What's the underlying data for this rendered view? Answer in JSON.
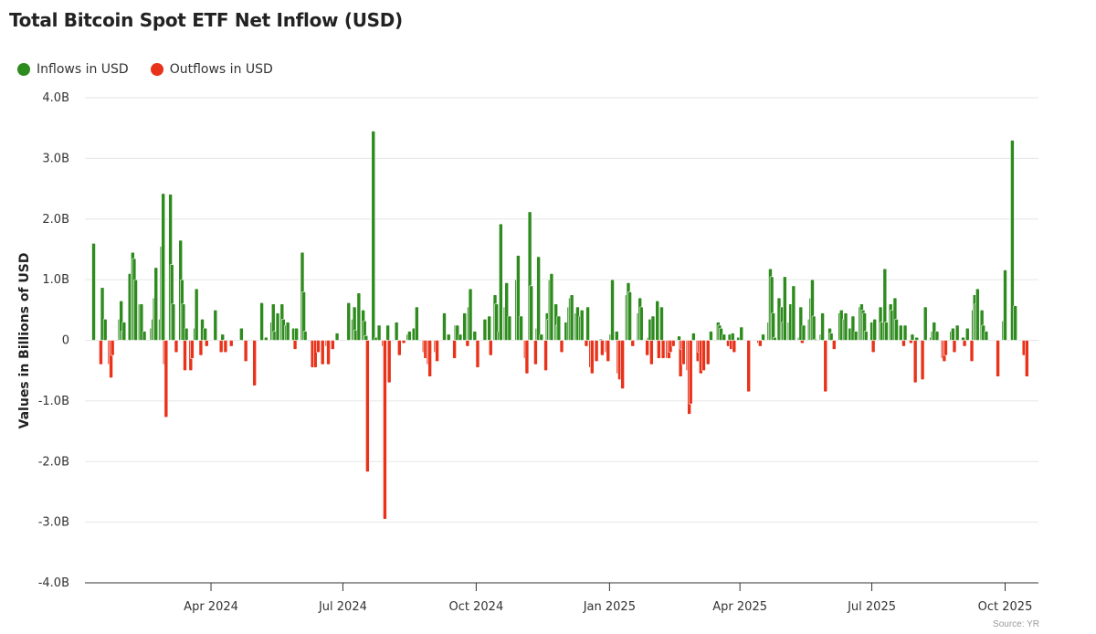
{
  "chart_data": {
    "type": "bar",
    "title": "Total Bitcoin Spot ETF Net Inflow (USD)",
    "ylabel": "Values in Billions of USD",
    "xlabel": "",
    "ylim": [
      -4.0,
      4.0
    ],
    "xlim": [
      "2024-01-05",
      "2025-10-24"
    ],
    "grid": true,
    "legend_placement": "top-left",
    "source": "Source: YR",
    "y_ticks": [
      {
        "value": 4,
        "label": "4.0B"
      },
      {
        "value": 3,
        "label": "3.0B"
      },
      {
        "value": 2,
        "label": "2.0B"
      },
      {
        "value": 1,
        "label": "1.0B"
      },
      {
        "value": 0,
        "label": "0"
      },
      {
        "value": -1,
        "label": "-1.0B"
      },
      {
        "value": -2,
        "label": "-2.0B"
      },
      {
        "value": -3,
        "label": "-3.0B"
      },
      {
        "value": -4,
        "label": "-4.0B"
      }
    ],
    "x_ticks": [
      {
        "date": "2024-04-01",
        "label": "Apr 2024"
      },
      {
        "date": "2024-07-01",
        "label": "Jul 2024"
      },
      {
        "date": "2024-10-01",
        "label": "Oct 2024"
      },
      {
        "date": "2025-01-01",
        "label": "Jan 2025"
      },
      {
        "date": "2025-04-01",
        "label": "Apr 2025"
      },
      {
        "date": "2025-07-01",
        "label": "Jul 2025"
      },
      {
        "date": "2025-10-01",
        "label": "Oct 2025"
      }
    ],
    "legend": [
      {
        "name": "Inflows in USD",
        "color": "#2e8b1e"
      },
      {
        "name": "Outflows in USD",
        "color": "#e8321a"
      }
    ],
    "colors": {
      "inflow": "#2e8b1e",
      "outflow": "#e8321a"
    },
    "values_unit": "billion USD",
    "points": [
      [
        "2024-01-11",
        1.6
      ],
      [
        "2024-01-16",
        -0.4
      ],
      [
        "2024-01-17",
        0.87
      ],
      [
        "2024-01-19",
        0.35
      ],
      [
        "2024-01-22",
        -0.4
      ],
      [
        "2024-01-23",
        -0.62
      ],
      [
        "2024-01-24",
        -0.25
      ],
      [
        "2024-01-29",
        0.35
      ],
      [
        "2024-01-30",
        0.65
      ],
      [
        "2024-01-31",
        0.15
      ],
      [
        "2024-02-01",
        0.3
      ],
      [
        "2024-02-05",
        1.1
      ],
      [
        "2024-02-07",
        1.45
      ],
      [
        "2024-02-08",
        1.35
      ],
      [
        "2024-02-09",
        1.0
      ],
      [
        "2024-02-12",
        0.6
      ],
      [
        "2024-02-13",
        0.6
      ],
      [
        "2024-02-15",
        0.15
      ],
      [
        "2024-02-20",
        0.2
      ],
      [
        "2024-02-21",
        0.35
      ],
      [
        "2024-02-22",
        0.7
      ],
      [
        "2024-02-23",
        1.2
      ],
      [
        "2024-02-26",
        0.35
      ],
      [
        "2024-02-27",
        1.55
      ],
      [
        "2024-02-28",
        2.42
      ],
      [
        "2024-02-29",
        -0.4
      ],
      [
        "2024-03-01",
        -1.27
      ],
      [
        "2024-03-04",
        2.41
      ],
      [
        "2024-03-05",
        1.25
      ],
      [
        "2024-03-06",
        0.6
      ],
      [
        "2024-03-08",
        -0.2
      ],
      [
        "2024-03-11",
        1.65
      ],
      [
        "2024-03-12",
        1.0
      ],
      [
        "2024-03-13",
        0.6
      ],
      [
        "2024-03-14",
        -0.5
      ],
      [
        "2024-03-15",
        0.2
      ],
      [
        "2024-03-18",
        -0.5
      ],
      [
        "2024-03-19",
        -0.3
      ],
      [
        "2024-03-21",
        0.2
      ],
      [
        "2024-03-22",
        0.85
      ],
      [
        "2024-03-25",
        -0.25
      ],
      [
        "2024-03-26",
        0.35
      ],
      [
        "2024-03-28",
        0.2
      ],
      [
        "2024-03-29",
        -0.1
      ],
      [
        "2024-04-04",
        0.5
      ],
      [
        "2024-04-08",
        -0.2
      ],
      [
        "2024-04-09",
        0.1
      ],
      [
        "2024-04-11",
        -0.2
      ],
      [
        "2024-04-15",
        -0.1
      ],
      [
        "2024-04-22",
        0.2
      ],
      [
        "2024-04-25",
        -0.35
      ],
      [
        "2024-05-01",
        -0.75
      ],
      [
        "2024-05-06",
        0.62
      ],
      [
        "2024-05-09",
        0.05
      ],
      [
        "2024-05-13",
        0.3
      ],
      [
        "2024-05-14",
        0.6
      ],
      [
        "2024-05-15",
        0.15
      ],
      [
        "2024-05-17",
        0.45
      ],
      [
        "2024-05-20",
        0.6
      ],
      [
        "2024-05-21",
        0.35
      ],
      [
        "2024-05-23",
        0.25
      ],
      [
        "2024-05-24",
        0.3
      ],
      [
        "2024-05-28",
        0.2
      ],
      [
        "2024-05-29",
        -0.15
      ],
      [
        "2024-05-30",
        0.2
      ],
      [
        "2024-06-03",
        1.45
      ],
      [
        "2024-06-04",
        0.8
      ],
      [
        "2024-06-05",
        0.15
      ],
      [
        "2024-06-10",
        -0.45
      ],
      [
        "2024-06-12",
        -0.45
      ],
      [
        "2024-06-14",
        -0.2
      ],
      [
        "2024-06-17",
        -0.4
      ],
      [
        "2024-06-20",
        -0.1
      ],
      [
        "2024-06-21",
        -0.4
      ],
      [
        "2024-06-24",
        -0.15
      ],
      [
        "2024-06-27",
        0.12
      ],
      [
        "2024-07-05",
        0.62
      ],
      [
        "2024-07-08",
        0.35
      ],
      [
        "2024-07-09",
        0.55
      ],
      [
        "2024-07-10",
        0.17
      ],
      [
        "2024-07-12",
        0.78
      ],
      [
        "2024-07-15",
        0.5
      ],
      [
        "2024-07-16",
        0.32
      ],
      [
        "2024-07-17",
        0.08
      ],
      [
        "2024-07-18",
        -2.17
      ],
      [
        "2024-07-22",
        3.45
      ],
      [
        "2024-07-24",
        0.05
      ],
      [
        "2024-07-26",
        0.25
      ],
      [
        "2024-07-29",
        -0.1
      ],
      [
        "2024-07-30",
        -2.95
      ],
      [
        "2024-08-01",
        0.25
      ],
      [
        "2024-08-02",
        -0.7
      ],
      [
        "2024-08-07",
        0.3
      ],
      [
        "2024-08-09",
        -0.25
      ],
      [
        "2024-08-12",
        -0.05
      ],
      [
        "2024-08-15",
        0.1
      ],
      [
        "2024-08-16",
        0.15
      ],
      [
        "2024-08-19",
        0.2
      ],
      [
        "2024-08-21",
        0.55
      ],
      [
        "2024-08-26",
        -0.2
      ],
      [
        "2024-08-27",
        -0.3
      ],
      [
        "2024-08-29",
        -0.4
      ],
      [
        "2024-08-30",
        -0.6
      ],
      [
        "2024-09-03",
        -0.2
      ],
      [
        "2024-09-04",
        -0.35
      ],
      [
        "2024-09-09",
        0.45
      ],
      [
        "2024-09-12",
        0.1
      ],
      [
        "2024-09-16",
        -0.3
      ],
      [
        "2024-09-17",
        0.25
      ],
      [
        "2024-09-18",
        0.25
      ],
      [
        "2024-09-20",
        0.1
      ],
      [
        "2024-09-23",
        0.45
      ],
      [
        "2024-09-25",
        -0.1
      ],
      [
        "2024-09-26",
        0.55
      ],
      [
        "2024-09-27",
        0.85
      ],
      [
        "2024-09-30",
        0.15
      ],
      [
        "2024-10-02",
        -0.45
      ],
      [
        "2024-10-07",
        0.35
      ],
      [
        "2024-10-10",
        0.4
      ],
      [
        "2024-10-11",
        -0.25
      ],
      [
        "2024-10-14",
        0.75
      ],
      [
        "2024-10-15",
        0.6
      ],
      [
        "2024-10-17",
        0.15
      ],
      [
        "2024-10-18",
        1.92
      ],
      [
        "2024-10-21",
        0.55
      ],
      [
        "2024-10-22",
        0.95
      ],
      [
        "2024-10-24",
        0.4
      ],
      [
        "2024-10-29",
        1.0
      ],
      [
        "2024-10-30",
        1.4
      ],
      [
        "2024-11-01",
        0.4
      ],
      [
        "2024-11-04",
        -0.3
      ],
      [
        "2024-11-05",
        -0.55
      ],
      [
        "2024-11-07",
        2.12
      ],
      [
        "2024-11-08",
        0.9
      ],
      [
        "2024-11-11",
        -0.4
      ],
      [
        "2024-11-12",
        0.2
      ],
      [
        "2024-11-13",
        1.38
      ],
      [
        "2024-11-15",
        0.1
      ],
      [
        "2024-11-18",
        -0.5
      ],
      [
        "2024-11-19",
        0.45
      ],
      [
        "2024-11-20",
        0.35
      ],
      [
        "2024-11-21",
        1.0
      ],
      [
        "2024-11-22",
        1.1
      ],
      [
        "2024-11-25",
        0.6
      ],
      [
        "2024-11-26",
        0.25
      ],
      [
        "2024-11-27",
        0.4
      ],
      [
        "2024-11-29",
        -0.2
      ],
      [
        "2024-12-02",
        0.3
      ],
      [
        "2024-12-04",
        0.55
      ],
      [
        "2024-12-05",
        0.7
      ],
      [
        "2024-12-06",
        0.75
      ],
      [
        "2024-12-09",
        0.45
      ],
      [
        "2024-12-10",
        0.55
      ],
      [
        "2024-12-12",
        0.4
      ],
      [
        "2024-12-13",
        0.5
      ],
      [
        "2024-12-16",
        -0.1
      ],
      [
        "2024-12-17",
        0.55
      ],
      [
        "2024-12-19",
        -0.45
      ],
      [
        "2024-12-20",
        -0.55
      ],
      [
        "2024-12-23",
        -0.35
      ],
      [
        "2024-12-26",
        0.02
      ],
      [
        "2024-12-27",
        -0.25
      ],
      [
        "2024-12-30",
        -0.2
      ],
      [
        "2024-12-31",
        -0.35
      ],
      [
        "2025-01-02",
        0.1
      ],
      [
        "2025-01-03",
        1.0
      ],
      [
        "2025-01-06",
        0.15
      ],
      [
        "2025-01-07",
        -0.55
      ],
      [
        "2025-01-08",
        -0.65
      ],
      [
        "2025-01-10",
        -0.8
      ],
      [
        "2025-01-13",
        0.75
      ],
      [
        "2025-01-14",
        0.95
      ],
      [
        "2025-01-15",
        0.8
      ],
      [
        "2025-01-17",
        -0.1
      ],
      [
        "2025-01-21",
        0.45
      ],
      [
        "2025-01-22",
        0.7
      ],
      [
        "2025-01-23",
        0.55
      ],
      [
        "2025-01-27",
        -0.25
      ],
      [
        "2025-01-28",
        0.05
      ],
      [
        "2025-01-29",
        0.35
      ],
      [
        "2025-01-30",
        -0.4
      ],
      [
        "2025-01-31",
        0.4
      ],
      [
        "2025-02-03",
        0.65
      ],
      [
        "2025-02-04",
        -0.3
      ],
      [
        "2025-02-06",
        0.55
      ],
      [
        "2025-02-07",
        -0.3
      ],
      [
        "2025-02-10",
        -0.3
      ],
      [
        "2025-02-11",
        -0.3
      ],
      [
        "2025-02-12",
        -0.2
      ],
      [
        "2025-02-14",
        -0.1
      ],
      [
        "2025-02-18",
        0.07
      ],
      [
        "2025-02-19",
        -0.6
      ],
      [
        "2025-02-20",
        -0.15
      ],
      [
        "2025-02-21",
        -0.4
      ],
      [
        "2025-02-24",
        -0.5
      ],
      [
        "2025-02-25",
        -1.22
      ],
      [
        "2025-02-26",
        -1.05
      ],
      [
        "2025-02-28",
        0.12
      ],
      [
        "2025-03-03",
        -0.35
      ],
      [
        "2025-03-04",
        -0.2
      ],
      [
        "2025-03-05",
        -0.55
      ],
      [
        "2025-03-07",
        -0.5
      ],
      [
        "2025-03-10",
        -0.4
      ],
      [
        "2025-03-12",
        0.15
      ],
      [
        "2025-03-17",
        0.3
      ],
      [
        "2025-03-18",
        0.25
      ],
      [
        "2025-03-19",
        0.2
      ],
      [
        "2025-03-21",
        0.1
      ],
      [
        "2025-03-24",
        -0.1
      ],
      [
        "2025-03-25",
        0.1
      ],
      [
        "2025-03-26",
        -0.15
      ],
      [
        "2025-03-27",
        0.12
      ],
      [
        "2025-03-28",
        -0.2
      ],
      [
        "2025-03-31",
        0.05
      ],
      [
        "2025-04-02",
        0.22
      ],
      [
        "2025-04-07",
        -0.85
      ],
      [
        "2025-04-14",
        -0.05
      ],
      [
        "2025-04-15",
        -0.1
      ],
      [
        "2025-04-17",
        0.1
      ],
      [
        "2025-04-21",
        0.3
      ],
      [
        "2025-04-22",
        1.18
      ],
      [
        "2025-04-23",
        1.05
      ],
      [
        "2025-04-24",
        0.45
      ],
      [
        "2025-04-25",
        0.05
      ],
      [
        "2025-04-28",
        0.7
      ],
      [
        "2025-04-30",
        0.55
      ],
      [
        "2025-05-01",
        0.3
      ],
      [
        "2025-05-02",
        1.05
      ],
      [
        "2025-05-05",
        0.3
      ],
      [
        "2025-05-06",
        0.6
      ],
      [
        "2025-05-08",
        0.9
      ],
      [
        "2025-05-12",
        0.05
      ],
      [
        "2025-05-13",
        0.55
      ],
      [
        "2025-05-14",
        -0.05
      ],
      [
        "2025-05-15",
        0.25
      ],
      [
        "2025-05-19",
        0.35
      ],
      [
        "2025-05-20",
        0.7
      ],
      [
        "2025-05-21",
        1.0
      ],
      [
        "2025-05-22",
        0.4
      ],
      [
        "2025-05-23",
        0.02
      ],
      [
        "2025-05-27",
        0.1
      ],
      [
        "2025-05-28",
        0.45
      ],
      [
        "2025-05-30",
        -0.85
      ],
      [
        "2025-06-02",
        0.2
      ],
      [
        "2025-06-03",
        0.12
      ],
      [
        "2025-06-05",
        -0.15
      ],
      [
        "2025-06-09",
        0.45
      ],
      [
        "2025-06-10",
        0.5
      ],
      [
        "2025-06-12",
        0.35
      ],
      [
        "2025-06-13",
        0.45
      ],
      [
        "2025-06-16",
        0.2
      ],
      [
        "2025-06-18",
        0.4
      ],
      [
        "2025-06-20",
        0.15
      ],
      [
        "2025-06-23",
        0.55
      ],
      [
        "2025-06-24",
        0.6
      ],
      [
        "2025-06-25",
        0.5
      ],
      [
        "2025-06-26",
        0.45
      ],
      [
        "2025-06-27",
        0.15
      ],
      [
        "2025-07-01",
        0.3
      ],
      [
        "2025-07-02",
        -0.2
      ],
      [
        "2025-07-03",
        0.35
      ],
      [
        "2025-07-07",
        0.55
      ],
      [
        "2025-07-08",
        0.3
      ],
      [
        "2025-07-10",
        1.18
      ],
      [
        "2025-07-11",
        0.3
      ],
      [
        "2025-07-14",
        0.6
      ],
      [
        "2025-07-15",
        0.5
      ],
      [
        "2025-07-17",
        0.7
      ],
      [
        "2025-07-18",
        0.35
      ],
      [
        "2025-07-21",
        0.25
      ],
      [
        "2025-07-23",
        -0.1
      ],
      [
        "2025-07-24",
        0.25
      ],
      [
        "2025-07-28",
        -0.05
      ],
      [
        "2025-07-29",
        0.1
      ],
      [
        "2025-07-31",
        -0.7
      ],
      [
        "2025-08-01",
        0.05
      ],
      [
        "2025-08-05",
        -0.65
      ],
      [
        "2025-08-07",
        0.55
      ],
      [
        "2025-08-11",
        0.05
      ],
      [
        "2025-08-12",
        0.15
      ],
      [
        "2025-08-13",
        0.3
      ],
      [
        "2025-08-15",
        0.15
      ],
      [
        "2025-08-19",
        -0.3
      ],
      [
        "2025-08-20",
        -0.35
      ],
      [
        "2025-08-21",
        -0.25
      ],
      [
        "2025-08-25",
        0.15
      ],
      [
        "2025-08-26",
        0.2
      ],
      [
        "2025-08-27",
        -0.2
      ],
      [
        "2025-08-29",
        0.25
      ],
      [
        "2025-09-02",
        0.05
      ],
      [
        "2025-09-03",
        -0.1
      ],
      [
        "2025-09-05",
        0.2
      ],
      [
        "2025-09-08",
        -0.35
      ],
      [
        "2025-09-09",
        0.5
      ],
      [
        "2025-09-10",
        0.75
      ],
      [
        "2025-09-11",
        0.6
      ],
      [
        "2025-09-12",
        0.85
      ],
      [
        "2025-09-15",
        0.5
      ],
      [
        "2025-09-16",
        0.25
      ],
      [
        "2025-09-18",
        0.15
      ],
      [
        "2025-09-26",
        -0.6
      ],
      [
        "2025-09-30",
        0.32
      ],
      [
        "2025-10-01",
        1.16
      ],
      [
        "2025-10-06",
        3.3
      ],
      [
        "2025-10-08",
        0.57
      ],
      [
        "2025-10-14",
        -0.25
      ],
      [
        "2025-10-16",
        -0.6
      ]
    ]
  }
}
